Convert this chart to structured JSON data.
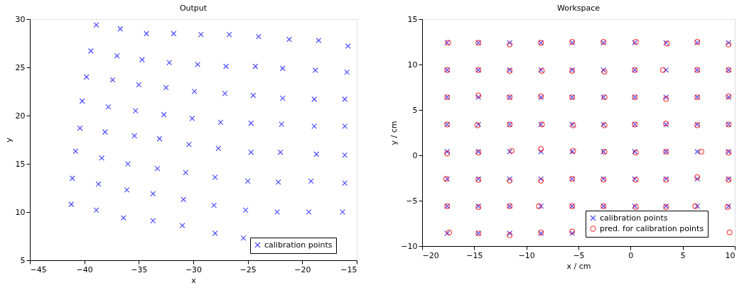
{
  "chart_data": [
    {
      "type": "scatter",
      "title": "Output",
      "xlabel": "x",
      "ylabel": "y",
      "xlim": [
        -45,
        -15
      ],
      "ylim": [
        5,
        30
      ],
      "xticks": [
        -45,
        -40,
        -35,
        -30,
        -25,
        -20,
        -15
      ],
      "yticks": [
        5,
        10,
        15,
        20,
        25,
        30
      ],
      "grid": false,
      "legend": "bottom right",
      "series": [
        {
          "name": "calibration points",
          "color": "#0000ff",
          "marker": "cross",
          "x": [
            -38.9,
            -36.7,
            -34.3,
            -31.8,
            -29.3,
            -26.7,
            -24.0,
            -21.2,
            -18.5,
            -15.8,
            -39.4,
            -37.0,
            -34.7,
            -32.2,
            -29.6,
            -27.0,
            -24.3,
            -21.8,
            -18.8,
            -15.9,
            -39.8,
            -37.4,
            -35.0,
            -32.5,
            -29.9,
            -27.1,
            -24.5,
            -21.8,
            -18.9,
            -16.1,
            -40.2,
            -37.8,
            -35.3,
            -32.7,
            -30.1,
            -27.5,
            -24.7,
            -21.9,
            -18.9,
            -16.1,
            -40.4,
            -38.1,
            -35.4,
            -33.1,
            -30.4,
            -27.7,
            -24.7,
            -22.0,
            -18.7,
            -16.1,
            -40.8,
            -38.4,
            -36.0,
            -33.3,
            -30.7,
            -28.0,
            -25.0,
            -22.2,
            -19.2,
            -16.1,
            -41.1,
            -38.7,
            -36.1,
            -33.7,
            -30.9,
            -28.1,
            -25.2,
            -22.3,
            -19.4,
            -16.3,
            -41.2,
            -38.9,
            -36.4,
            -33.7,
            -31.0,
            -28.0,
            -25.4
          ],
          "values": [
            29.4,
            29.0,
            28.5,
            28.5,
            28.4,
            28.4,
            28.2,
            27.9,
            27.8,
            27.2,
            26.7,
            26.2,
            25.8,
            25.5,
            25.3,
            25.1,
            25.1,
            24.9,
            24.7,
            24.5,
            24.0,
            23.7,
            23.2,
            22.9,
            22.5,
            22.3,
            22.1,
            21.8,
            21.7,
            21.7,
            21.5,
            20.9,
            20.5,
            20.1,
            19.7,
            19.3,
            19.2,
            19.1,
            18.9,
            18.9,
            18.7,
            18.3,
            17.9,
            17.6,
            17.0,
            16.6,
            16.2,
            16.2,
            16.0,
            15.9,
            16.3,
            15.6,
            15.0,
            14.5,
            14.1,
            13.6,
            13.2,
            13.1,
            13.2,
            13.0,
            13.5,
            12.9,
            12.3,
            11.9,
            11.3,
            10.7,
            10.2,
            10.0,
            10.0,
            10.0,
            10.8,
            10.2,
            9.4,
            9.1,
            8.6,
            7.8,
            7.3
          ]
        }
      ]
    },
    {
      "type": "scatter",
      "title": "Workspace",
      "xlabel": "x / cm",
      "ylabel": "y / cm",
      "xlim": [
        -20,
        10
      ],
      "ylim": [
        -10,
        15
      ],
      "xticks": [
        -20,
        -15,
        -10,
        -5,
        0,
        5,
        10
      ],
      "yticks": [
        -10,
        -5,
        0,
        5,
        10,
        15
      ],
      "grid": false,
      "legend": "bottom right",
      "series": [
        {
          "name": "calibration points",
          "color": "#0000ff",
          "marker": "cross",
          "x": [
            -17.6,
            -14.6,
            -11.6,
            -8.6,
            -5.6,
            -2.6,
            0.4,
            3.4,
            6.4,
            9.4,
            -17.6,
            -14.6,
            -11.6,
            -8.6,
            -5.6,
            -2.6,
            0.4,
            3.4,
            6.4,
            9.4,
            -17.6,
            -14.6,
            -11.6,
            -8.6,
            -5.6,
            -2.6,
            0.4,
            3.4,
            6.4,
            9.4,
            -17.6,
            -14.6,
            -11.6,
            -8.6,
            -5.6,
            -2.6,
            0.4,
            3.4,
            6.4,
            9.4,
            -17.6,
            -14.6,
            -11.6,
            -8.6,
            -5.6,
            -2.6,
            0.4,
            3.4,
            6.4,
            9.4,
            -17.6,
            -14.6,
            -11.6,
            -8.6,
            -5.6,
            -2.6,
            0.4,
            3.4,
            6.4,
            9.4,
            -17.6,
            -14.6,
            -11.6,
            -8.6,
            -5.6,
            -2.6,
            0.4,
            3.4,
            6.4,
            9.4,
            -17.6,
            -14.6,
            -11.6,
            -8.6,
            -5.6
          ],
          "values": [
            12.4,
            12.4,
            12.4,
            12.4,
            12.4,
            12.4,
            12.4,
            12.4,
            12.4,
            12.4,
            9.4,
            9.4,
            9.4,
            9.4,
            9.4,
            9.4,
            9.4,
            9.4,
            9.4,
            9.4,
            6.4,
            6.4,
            6.4,
            6.4,
            6.4,
            6.4,
            6.4,
            6.4,
            6.4,
            6.4,
            3.4,
            3.4,
            3.4,
            3.4,
            3.4,
            3.4,
            3.4,
            3.4,
            3.4,
            3.4,
            0.4,
            0.4,
            0.4,
            0.4,
            0.4,
            0.4,
            0.4,
            0.4,
            0.4,
            0.4,
            -2.6,
            -2.6,
            -2.6,
            -2.6,
            -2.6,
            -2.6,
            -2.6,
            -2.6,
            -2.6,
            -2.6,
            -5.6,
            -5.6,
            -5.6,
            -5.6,
            -5.6,
            -5.6,
            -5.6,
            -5.6,
            -5.6,
            -5.6,
            -8.6,
            -8.6,
            -8.6,
            -8.6,
            -8.6
          ]
        },
        {
          "name": "pred. for calibration points",
          "color": "#ff0000",
          "marker": "circle",
          "x": [
            -17.5,
            -14.6,
            -11.6,
            -8.6,
            -5.6,
            -2.6,
            0.5,
            3.5,
            6.4,
            9.4,
            -17.6,
            -14.6,
            -11.6,
            -8.5,
            -5.6,
            -2.5,
            0.4,
            3.1,
            6.4,
            9.4,
            -17.6,
            -14.6,
            -11.6,
            -8.6,
            -5.6,
            -2.5,
            0.4,
            3.4,
            6.4,
            9.4,
            -17.6,
            -14.7,
            -11.6,
            -8.5,
            -5.5,
            -2.5,
            0.4,
            3.4,
            6.4,
            9.4,
            -17.6,
            -14.6,
            -11.4,
            -8.6,
            -5.5,
            -2.5,
            0.5,
            3.4,
            6.8,
            9.4,
            -17.7,
            -14.6,
            -11.6,
            -8.6,
            -5.6,
            -2.6,
            0.5,
            3.4,
            6.4,
            9.4,
            -17.6,
            -14.6,
            -11.6,
            -8.8,
            -5.6,
            -2.6,
            0.5,
            3.4,
            6.2,
            9.3,
            -17.4,
            -14.6,
            -11.6,
            -8.6,
            -5.6,
            9.5
          ],
          "values": [
            12.4,
            12.4,
            12.2,
            12.4,
            12.5,
            12.5,
            12.5,
            12.3,
            12.5,
            12.2,
            9.4,
            9.4,
            9.3,
            9.3,
            9.3,
            9.2,
            9.4,
            9.4,
            9.4,
            9.4,
            6.4,
            6.6,
            6.4,
            6.5,
            6.4,
            6.4,
            6.4,
            6.2,
            6.4,
            6.5,
            3.4,
            3.3,
            3.4,
            3.4,
            3.3,
            3.3,
            3.4,
            3.5,
            3.3,
            3.4,
            0.2,
            0.3,
            0.5,
            0.7,
            0.5,
            0.4,
            0.3,
            0.4,
            0.4,
            0.3,
            -2.6,
            -2.7,
            -2.8,
            -2.8,
            -2.6,
            -2.7,
            -2.7,
            -2.7,
            -2.4,
            -2.7,
            -5.6,
            -5.7,
            -5.6,
            -5.6,
            -5.6,
            -5.6,
            -5.7,
            -5.7,
            -5.6,
            -5.7,
            -8.5,
            -8.6,
            -8.8,
            -8.5,
            -8.4,
            -8.5
          ]
        }
      ]
    }
  ]
}
